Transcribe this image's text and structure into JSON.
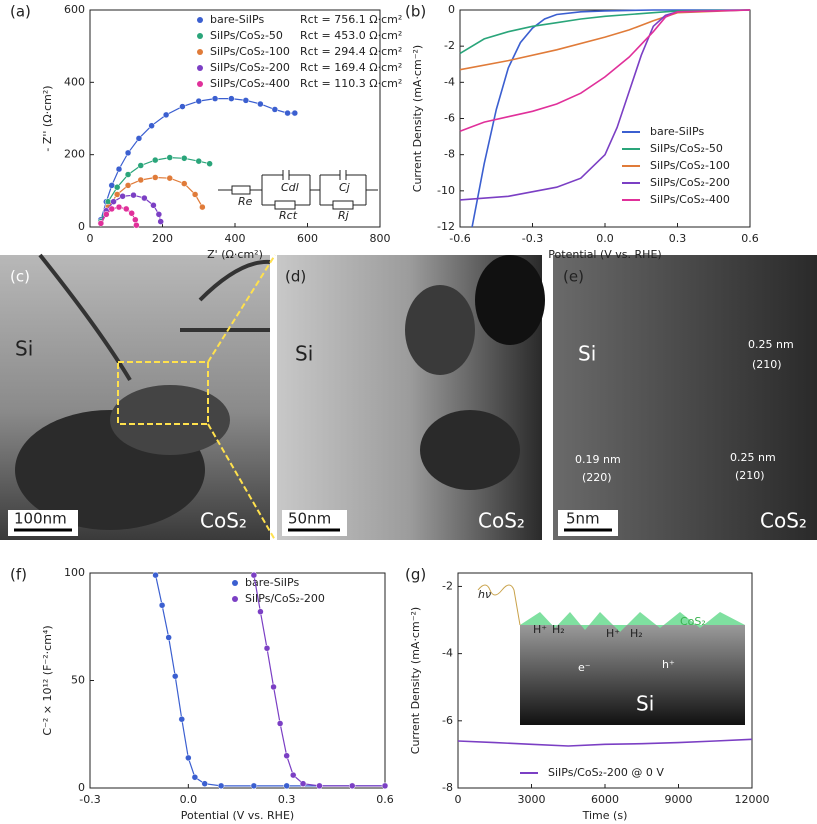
{
  "chart_data": [
    {
      "type": "scatter",
      "panel": "(a)",
      "x_label": "Z' (Ω·cm²)",
      "y_label": "- Z'' (Ω·cm²)",
      "xlim": [
        0,
        800
      ],
      "xticks": [
        0,
        200,
        400,
        600,
        800
      ],
      "ylim": [
        0,
        600
      ],
      "yticks": [
        0,
        200,
        400,
        600
      ],
      "series": [
        {
          "name": "bare-SiIPs",
          "rct": "Rct = 756.1 Ω·cm²",
          "color": "#3b5fd0",
          "x": [
            30,
            45,
            60,
            80,
            105,
            135,
            170,
            210,
            255,
            300,
            345,
            390,
            430,
            470,
            510,
            545,
            565
          ],
          "values": [
            20,
            70,
            115,
            160,
            205,
            245,
            280,
            310,
            333,
            348,
            355,
            355,
            350,
            340,
            325,
            315,
            315
          ]
        },
        {
          "name": "SiIPs/CoS₂-50",
          "rct": "Rct = 453.0 Ω·cm²",
          "color": "#2aa57a",
          "x": [
            30,
            50,
            75,
            105,
            140,
            180,
            220,
            260,
            300,
            330
          ],
          "values": [
            15,
            70,
            110,
            145,
            170,
            185,
            192,
            190,
            182,
            175
          ]
        },
        {
          "name": "SiIPs/CoS₂-100",
          "rct": "Rct = 294.4 Ω·cm²",
          "color": "#e07b39",
          "x": [
            30,
            50,
            75,
            105,
            140,
            180,
            220,
            260,
            290,
            310
          ],
          "values": [
            10,
            55,
            90,
            115,
            130,
            137,
            135,
            120,
            90,
            55
          ]
        },
        {
          "name": "SiIPs/CoS₂-200",
          "rct": "Rct = 169.4 Ω·cm²",
          "color": "#7b3fc4",
          "x": [
            30,
            45,
            65,
            90,
            120,
            150,
            175,
            190,
            195
          ],
          "values": [
            10,
            45,
            70,
            85,
            88,
            80,
            60,
            35,
            15
          ]
        },
        {
          "name": "SiIPs/CoS₂-400",
          "rct": "Rct = 110.3 Ω·cm²",
          "color": "#e0309a",
          "x": [
            30,
            45,
            60,
            80,
            100,
            115,
            125,
            128
          ],
          "values": [
            10,
            35,
            50,
            55,
            50,
            38,
            20,
            5
          ]
        }
      ],
      "circuit_labels": [
        "Re",
        "Cdl",
        "Rct",
        "Cj",
        "Rj"
      ]
    },
    {
      "type": "line",
      "panel": "(b)",
      "x_label": "Potential (V vs. RHE)",
      "y_label": "Current Density (mA·cm⁻²)",
      "xlim": [
        -0.6,
        0.6
      ],
      "xticks": [
        -0.6,
        -0.3,
        {
          "value": 0,
          "label": "0.0"
        },
        0.3,
        0.6
      ],
      "ylim": [
        -12,
        0
      ],
      "yticks": [
        -12,
        -10,
        -8,
        -6,
        -4,
        -2,
        0
      ],
      "series": [
        {
          "name": "bare-SiIPs",
          "color": "#3b5fd0",
          "x": [
            -0.55,
            -0.5,
            -0.45,
            -0.4,
            -0.35,
            -0.3,
            -0.25,
            -0.2,
            -0.1,
            0,
            0.2,
            0.6
          ],
          "values": [
            -12,
            -8.5,
            -5.5,
            -3.2,
            -1.8,
            -1.0,
            -0.5,
            -0.25,
            -0.1,
            -0.05,
            0,
            0
          ]
        },
        {
          "name": "SiIPs/CoS₂-50",
          "color": "#2aa57a",
          "x": [
            -0.6,
            -0.5,
            -0.4,
            -0.3,
            -0.2,
            -0.1,
            0,
            0.1,
            0.2,
            0.3,
            0.6
          ],
          "values": [
            -2.4,
            -1.6,
            -1.2,
            -0.9,
            -0.7,
            -0.5,
            -0.35,
            -0.25,
            -0.15,
            -0.05,
            0
          ]
        },
        {
          "name": "SiIPs/CoS₂-100",
          "color": "#e07b39",
          "x": [
            -0.6,
            -0.4,
            -0.2,
            0,
            0.1,
            0.2,
            0.3,
            0.6
          ],
          "values": [
            -3.3,
            -2.8,
            -2.2,
            -1.5,
            -1.1,
            -0.6,
            -0.15,
            0
          ]
        },
        {
          "name": "SiIPs/CoS₂-200",
          "color": "#7b3fc4",
          "x": [
            -0.6,
            -0.4,
            -0.2,
            -0.1,
            0,
            0.05,
            0.1,
            0.15,
            0.2,
            0.25,
            0.3,
            0.6
          ],
          "values": [
            -10.5,
            -10.3,
            -9.8,
            -9.3,
            -8,
            -6.5,
            -4.5,
            -2.5,
            -0.9,
            -0.3,
            -0.1,
            0
          ]
        },
        {
          "name": "SiIPs/CoS₂-400",
          "color": "#e0309a",
          "x": [
            -0.6,
            -0.5,
            -0.4,
            -0.3,
            -0.2,
            -0.1,
            0,
            0.1,
            0.2,
            0.25,
            0.3,
            0.6
          ],
          "values": [
            -6.7,
            -6.2,
            -5.9,
            -5.6,
            -5.2,
            -4.6,
            -3.7,
            -2.6,
            -1.2,
            -0.4,
            -0.1,
            0
          ]
        }
      ]
    },
    {
      "type": "scatter",
      "panel": "(f)",
      "x_label": "Potential (V vs. RHE)",
      "y_label": "C⁻² × 10¹² (F⁻²·cm⁴)",
      "xlim": [
        -0.3,
        0.6
      ],
      "xticks": [
        -0.3,
        {
          "value": 0,
          "label": "0.0"
        },
        0.3,
        0.6
      ],
      "ylim": [
        0,
        100
      ],
      "yticks": [
        0,
        50,
        100
      ],
      "series": [
        {
          "name": "bare-SiIPs",
          "color": "#3b5fd0",
          "x": [
            -0.1,
            -0.08,
            -0.06,
            -0.04,
            -0.02,
            0,
            0.02,
            0.05,
            0.1,
            0.2,
            0.3,
            0.4,
            0.5,
            0.6
          ],
          "values": [
            99,
            85,
            70,
            52,
            32,
            14,
            5,
            2,
            1,
            1,
            1,
            1,
            1,
            1
          ]
        },
        {
          "name": "SiIPs/CoS₂-200",
          "color": "#7b3fc4",
          "x": [
            0.2,
            0.22,
            0.24,
            0.26,
            0.28,
            0.3,
            0.32,
            0.35,
            0.4,
            0.5,
            0.6
          ],
          "values": [
            99,
            82,
            65,
            47,
            30,
            15,
            6,
            2,
            1,
            1,
            1
          ]
        }
      ]
    },
    {
      "type": "line",
      "panel": "(g)",
      "x_label": "Time (s)",
      "y_label": "Current Density (mA·cm⁻²)",
      "xlim": [
        0,
        12000
      ],
      "xticks": [
        0,
        3000,
        6000,
        9000,
        12000
      ],
      "ylim": [
        -8,
        -1.6
      ],
      "yticks": [
        -8,
        -6,
        -4,
        -2
      ],
      "series": [
        {
          "name": "SiIPs/CoS₂-200 @ 0 V",
          "color": "#7b3fc4",
          "x": [
            0,
            1500,
            3000,
            4500,
            6000,
            7500,
            9000,
            10500,
            12000
          ],
          "values": [
            -6.6,
            -6.65,
            -6.7,
            -6.75,
            -6.7,
            -6.68,
            -6.65,
            -6.6,
            -6.55
          ]
        }
      ],
      "inset_labels": [
        "hν",
        "H⁺",
        "H₂",
        "e⁻",
        "H⁺",
        "H₂",
        "CoS₂",
        "Si",
        "h⁺"
      ]
    }
  ],
  "images": [
    {
      "label": "(c)",
      "texts": [
        "Si",
        "CoS₂",
        "100nm"
      ]
    },
    {
      "label": "(d)",
      "texts": [
        "Si",
        "CoS₂",
        "50nm"
      ]
    },
    {
      "label": "(e)",
      "texts": [
        "Si",
        "0.19 nm",
        "(220)",
        "0.25 nm",
        "(210)",
        "0.25 nm",
        "(210)",
        "CoS₂",
        "5nm"
      ]
    }
  ]
}
